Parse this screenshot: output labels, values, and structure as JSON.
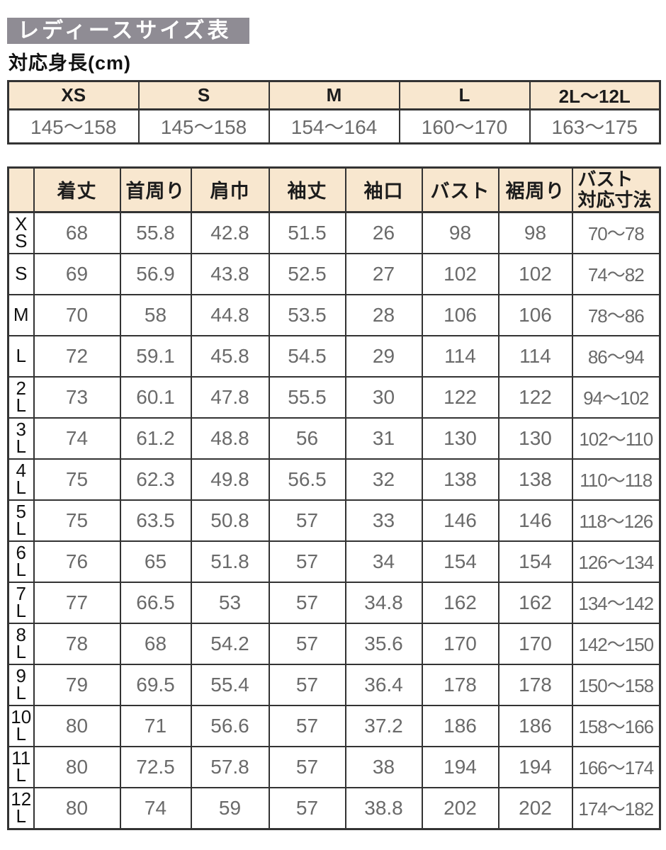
{
  "page": {
    "title": "レディースサイズ表",
    "subtitle": "対応身長(cm)"
  },
  "height_table": {
    "columns": [
      "XS",
      "S",
      "M",
      "L",
      "2L〜12L"
    ],
    "ranges": [
      "145〜158",
      "145〜158",
      "154〜164",
      "160〜170",
      "163〜175"
    ]
  },
  "size_table": {
    "columns": [
      "着丈",
      "首周り",
      "肩巾",
      "袖丈",
      "袖口",
      "バスト",
      "裾周り",
      "バスト\n対応寸法"
    ],
    "rows": [
      {
        "size": "XS",
        "label": "X\nS",
        "values": [
          "68",
          "55.8",
          "42.8",
          "51.5",
          "26",
          "98",
          "98",
          "70〜78"
        ]
      },
      {
        "size": "S",
        "label": "S",
        "values": [
          "69",
          "56.9",
          "43.8",
          "52.5",
          "27",
          "102",
          "102",
          "74〜82"
        ]
      },
      {
        "size": "M",
        "label": "M",
        "values": [
          "70",
          "58",
          "44.8",
          "53.5",
          "28",
          "106",
          "106",
          "78〜86"
        ]
      },
      {
        "size": "L",
        "label": "L",
        "values": [
          "72",
          "59.1",
          "45.8",
          "54.5",
          "29",
          "114",
          "114",
          "86〜94"
        ]
      },
      {
        "size": "2L",
        "label": "2\nL",
        "values": [
          "73",
          "60.1",
          "47.8",
          "55.5",
          "30",
          "122",
          "122",
          "94〜102"
        ]
      },
      {
        "size": "3L",
        "label": "3\nL",
        "values": [
          "74",
          "61.2",
          "48.8",
          "56",
          "31",
          "130",
          "130",
          "102〜110"
        ]
      },
      {
        "size": "4L",
        "label": "4\nL",
        "values": [
          "75",
          "62.3",
          "49.8",
          "56.5",
          "32",
          "138",
          "138",
          "110〜118"
        ]
      },
      {
        "size": "5L",
        "label": "5\nL",
        "values": [
          "75",
          "63.5",
          "50.8",
          "57",
          "33",
          "146",
          "146",
          "118〜126"
        ]
      },
      {
        "size": "6L",
        "label": "6\nL",
        "values": [
          "76",
          "65",
          "51.8",
          "57",
          "34",
          "154",
          "154",
          "126〜134"
        ]
      },
      {
        "size": "7L",
        "label": "7\nL",
        "values": [
          "77",
          "66.5",
          "53",
          "57",
          "34.8",
          "162",
          "162",
          "134〜142"
        ]
      },
      {
        "size": "8L",
        "label": "8\nL",
        "values": [
          "78",
          "68",
          "54.2",
          "57",
          "35.6",
          "170",
          "170",
          "142〜150"
        ]
      },
      {
        "size": "9L",
        "label": "9\nL",
        "values": [
          "79",
          "69.5",
          "55.4",
          "57",
          "36.4",
          "178",
          "178",
          "150〜158"
        ]
      },
      {
        "size": "10L",
        "label": "10\nL",
        "values": [
          "80",
          "71",
          "56.6",
          "57",
          "37.2",
          "186",
          "186",
          "158〜166"
        ]
      },
      {
        "size": "11L",
        "label": "11\nL",
        "values": [
          "80",
          "72.5",
          "57.8",
          "57",
          "38",
          "194",
          "194",
          "166〜174"
        ]
      },
      {
        "size": "12L",
        "label": "12\nL",
        "values": [
          "80",
          "74",
          "59",
          "57",
          "38.8",
          "202",
          "202",
          "174〜182"
        ]
      }
    ]
  },
  "colors": {
    "title_bg": "#8f8c94",
    "title_text": "#ffffff",
    "header_bg": "#f8e7cf",
    "border": "#333333",
    "data_text": "#6a6a6a",
    "heading_text": "#1c1c1c"
  }
}
